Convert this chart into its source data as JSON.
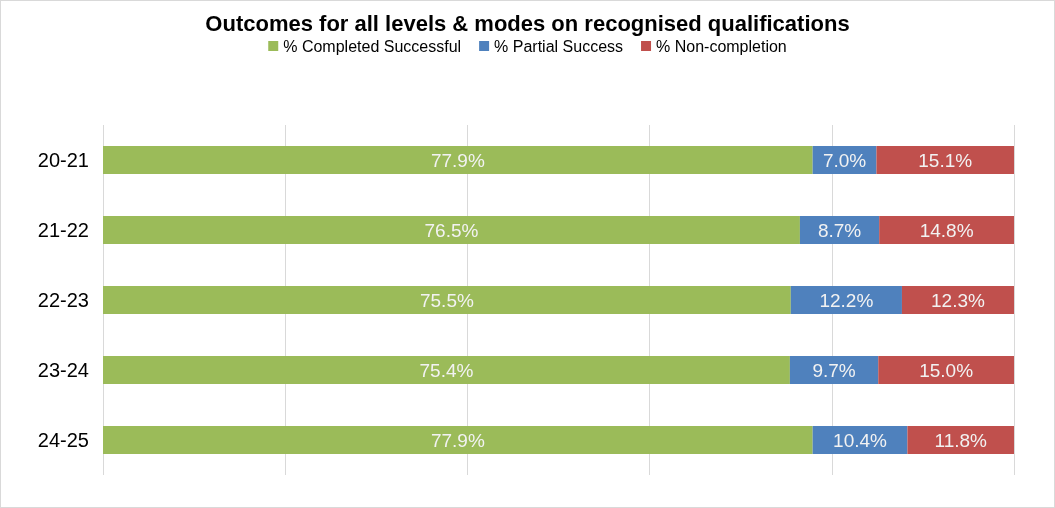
{
  "chart_data": {
    "type": "bar",
    "title": "Outcomes for all levels & modes on recognised qualifications",
    "orientation": "horizontal",
    "stacked": true,
    "categories": [
      "20-21",
      "21-22",
      "22-23",
      "23-24",
      "24-25"
    ],
    "series": [
      {
        "name": "% Completed Successful",
        "color": "#9bbb59",
        "values": [
          77.9,
          76.5,
          75.5,
          75.4,
          77.9
        ],
        "value_labels": [
          "77.9%",
          "76.5%",
          "75.5%",
          "75.4%",
          "77.9%"
        ]
      },
      {
        "name": "% Partial Success",
        "color": "#4f81bd",
        "values": [
          7.0,
          8.7,
          12.2,
          9.7,
          10.4
        ],
        "value_labels": [
          "7.0%",
          "8.7%",
          "12.2%",
          "9.7%",
          "10.4%"
        ]
      },
      {
        "name": "% Non-completion",
        "color": "#c0504d",
        "values": [
          15.1,
          14.8,
          12.3,
          15.0,
          11.8
        ],
        "value_labels": [
          "15.1%",
          "14.8%",
          "12.3%",
          "15.0%",
          "11.8%"
        ]
      }
    ],
    "xlim": [
      0,
      100
    ],
    "xticks": [
      {
        "value": 0,
        "label": null
      },
      {
        "value": 20,
        "label": null
      },
      {
        "value": 40,
        "label": null
      },
      {
        "value": 60,
        "label": null
      },
      {
        "value": 80,
        "label": null
      },
      {
        "value": 100,
        "label": null
      }
    ],
    "tick_labels": "y",
    "grid": "x",
    "legend": "top"
  }
}
